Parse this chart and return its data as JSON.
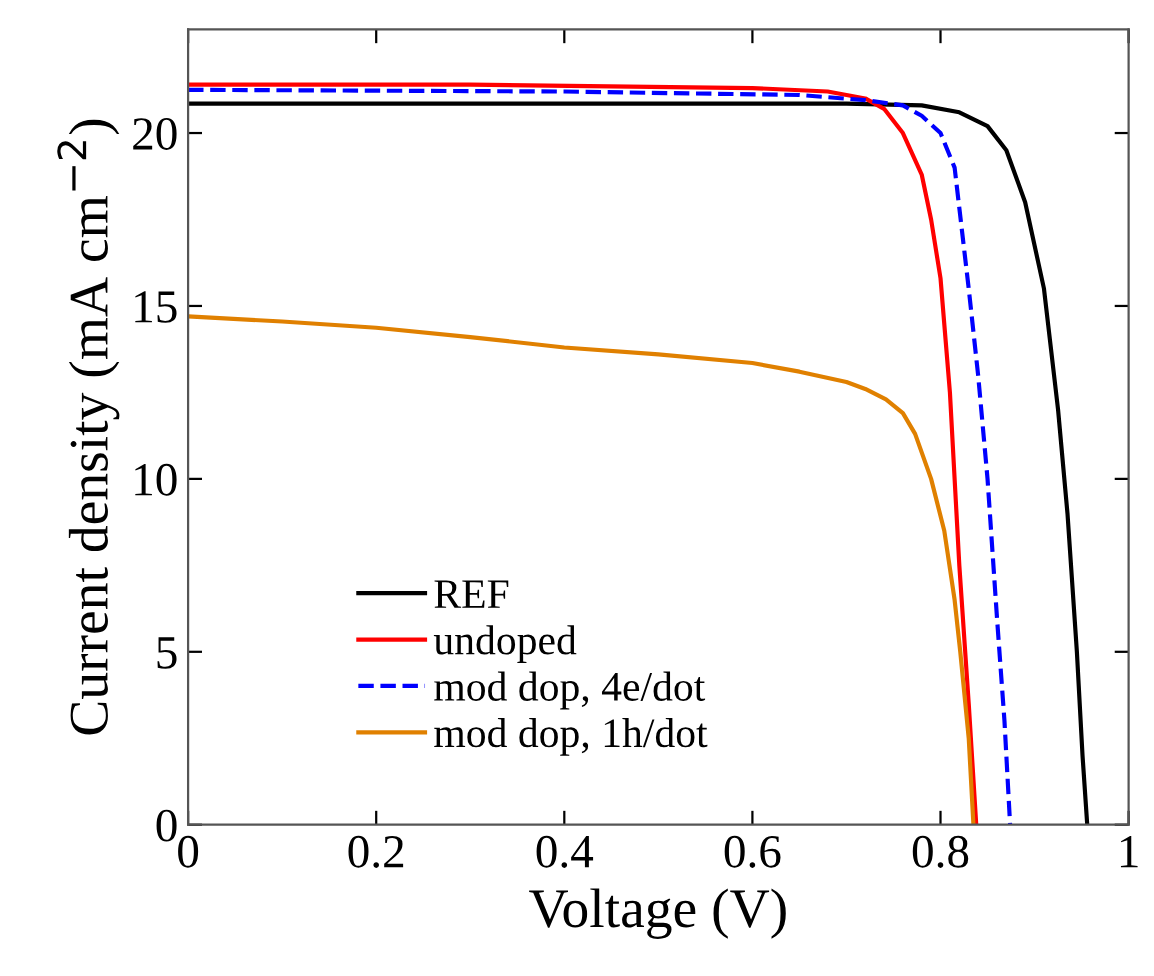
{
  "chart_data": {
    "type": "line",
    "xlabel": "Voltage (V)",
    "ylabel": "Current density (mA cm$^{−2}$)",
    "xlim": [
      0,
      1
    ],
    "ylim": [
      0,
      23
    ],
    "xticks": [
      0,
      0.2,
      0.4,
      0.6,
      0.8,
      1
    ],
    "yticks": [
      0,
      5,
      10,
      15,
      20
    ],
    "grid": false,
    "legend": "bottom left",
    "marker": "none",
    "series": [
      {
        "name": "REF",
        "color": "#000000",
        "line_style": "solid",
        "x": [
          0,
          0.7,
          0.78,
          0.82,
          0.85,
          0.87,
          0.89,
          0.91,
          0.925,
          0.935,
          0.945,
          0.951,
          0.956
        ],
        "values": [
          20.85,
          20.85,
          20.8,
          20.6,
          20.2,
          19.5,
          18.0,
          15.5,
          12,
          9,
          5,
          2,
          0
        ]
      },
      {
        "name": "undoped",
        "color": "#ff0000",
        "line_style": "solid",
        "x": [
          0,
          0.3,
          0.6,
          0.68,
          0.72,
          0.74,
          0.76,
          0.78,
          0.79,
          0.8,
          0.81,
          0.82,
          0.83,
          0.838
        ],
        "values": [
          21.4,
          21.4,
          21.3,
          21.2,
          21.0,
          20.7,
          20.0,
          18.8,
          17.5,
          15.8,
          12.5,
          7.5,
          3.5,
          0
        ]
      },
      {
        "name": "mod dop, 4e/dot",
        "color": "#0000ff",
        "line_style": "dashed",
        "x": [
          0,
          0.4,
          0.65,
          0.72,
          0.76,
          0.78,
          0.8,
          0.815,
          0.83,
          0.84,
          0.85,
          0.86,
          0.868,
          0.874
        ],
        "values": [
          21.25,
          21.2,
          21.1,
          20.95,
          20.8,
          20.5,
          20.0,
          19,
          15.5,
          13,
          10,
          6,
          3,
          0
        ]
      },
      {
        "name": "mod dop, 1h/dot",
        "color": "#e08000",
        "line_style": "solid",
        "x": [
          0,
          0.1,
          0.2,
          0.3,
          0.4,
          0.5,
          0.6,
          0.65,
          0.7,
          0.72,
          0.742,
          0.76,
          0.773,
          0.79,
          0.804,
          0.815,
          0.821,
          0.83,
          0.835
        ],
        "values": [
          14.7,
          14.55,
          14.37,
          14.1,
          13.8,
          13.6,
          13.35,
          13.1,
          12.8,
          12.6,
          12.3,
          11.9,
          11.3,
          10,
          8.5,
          6.5,
          5,
          2.5,
          0
        ]
      }
    ]
  }
}
